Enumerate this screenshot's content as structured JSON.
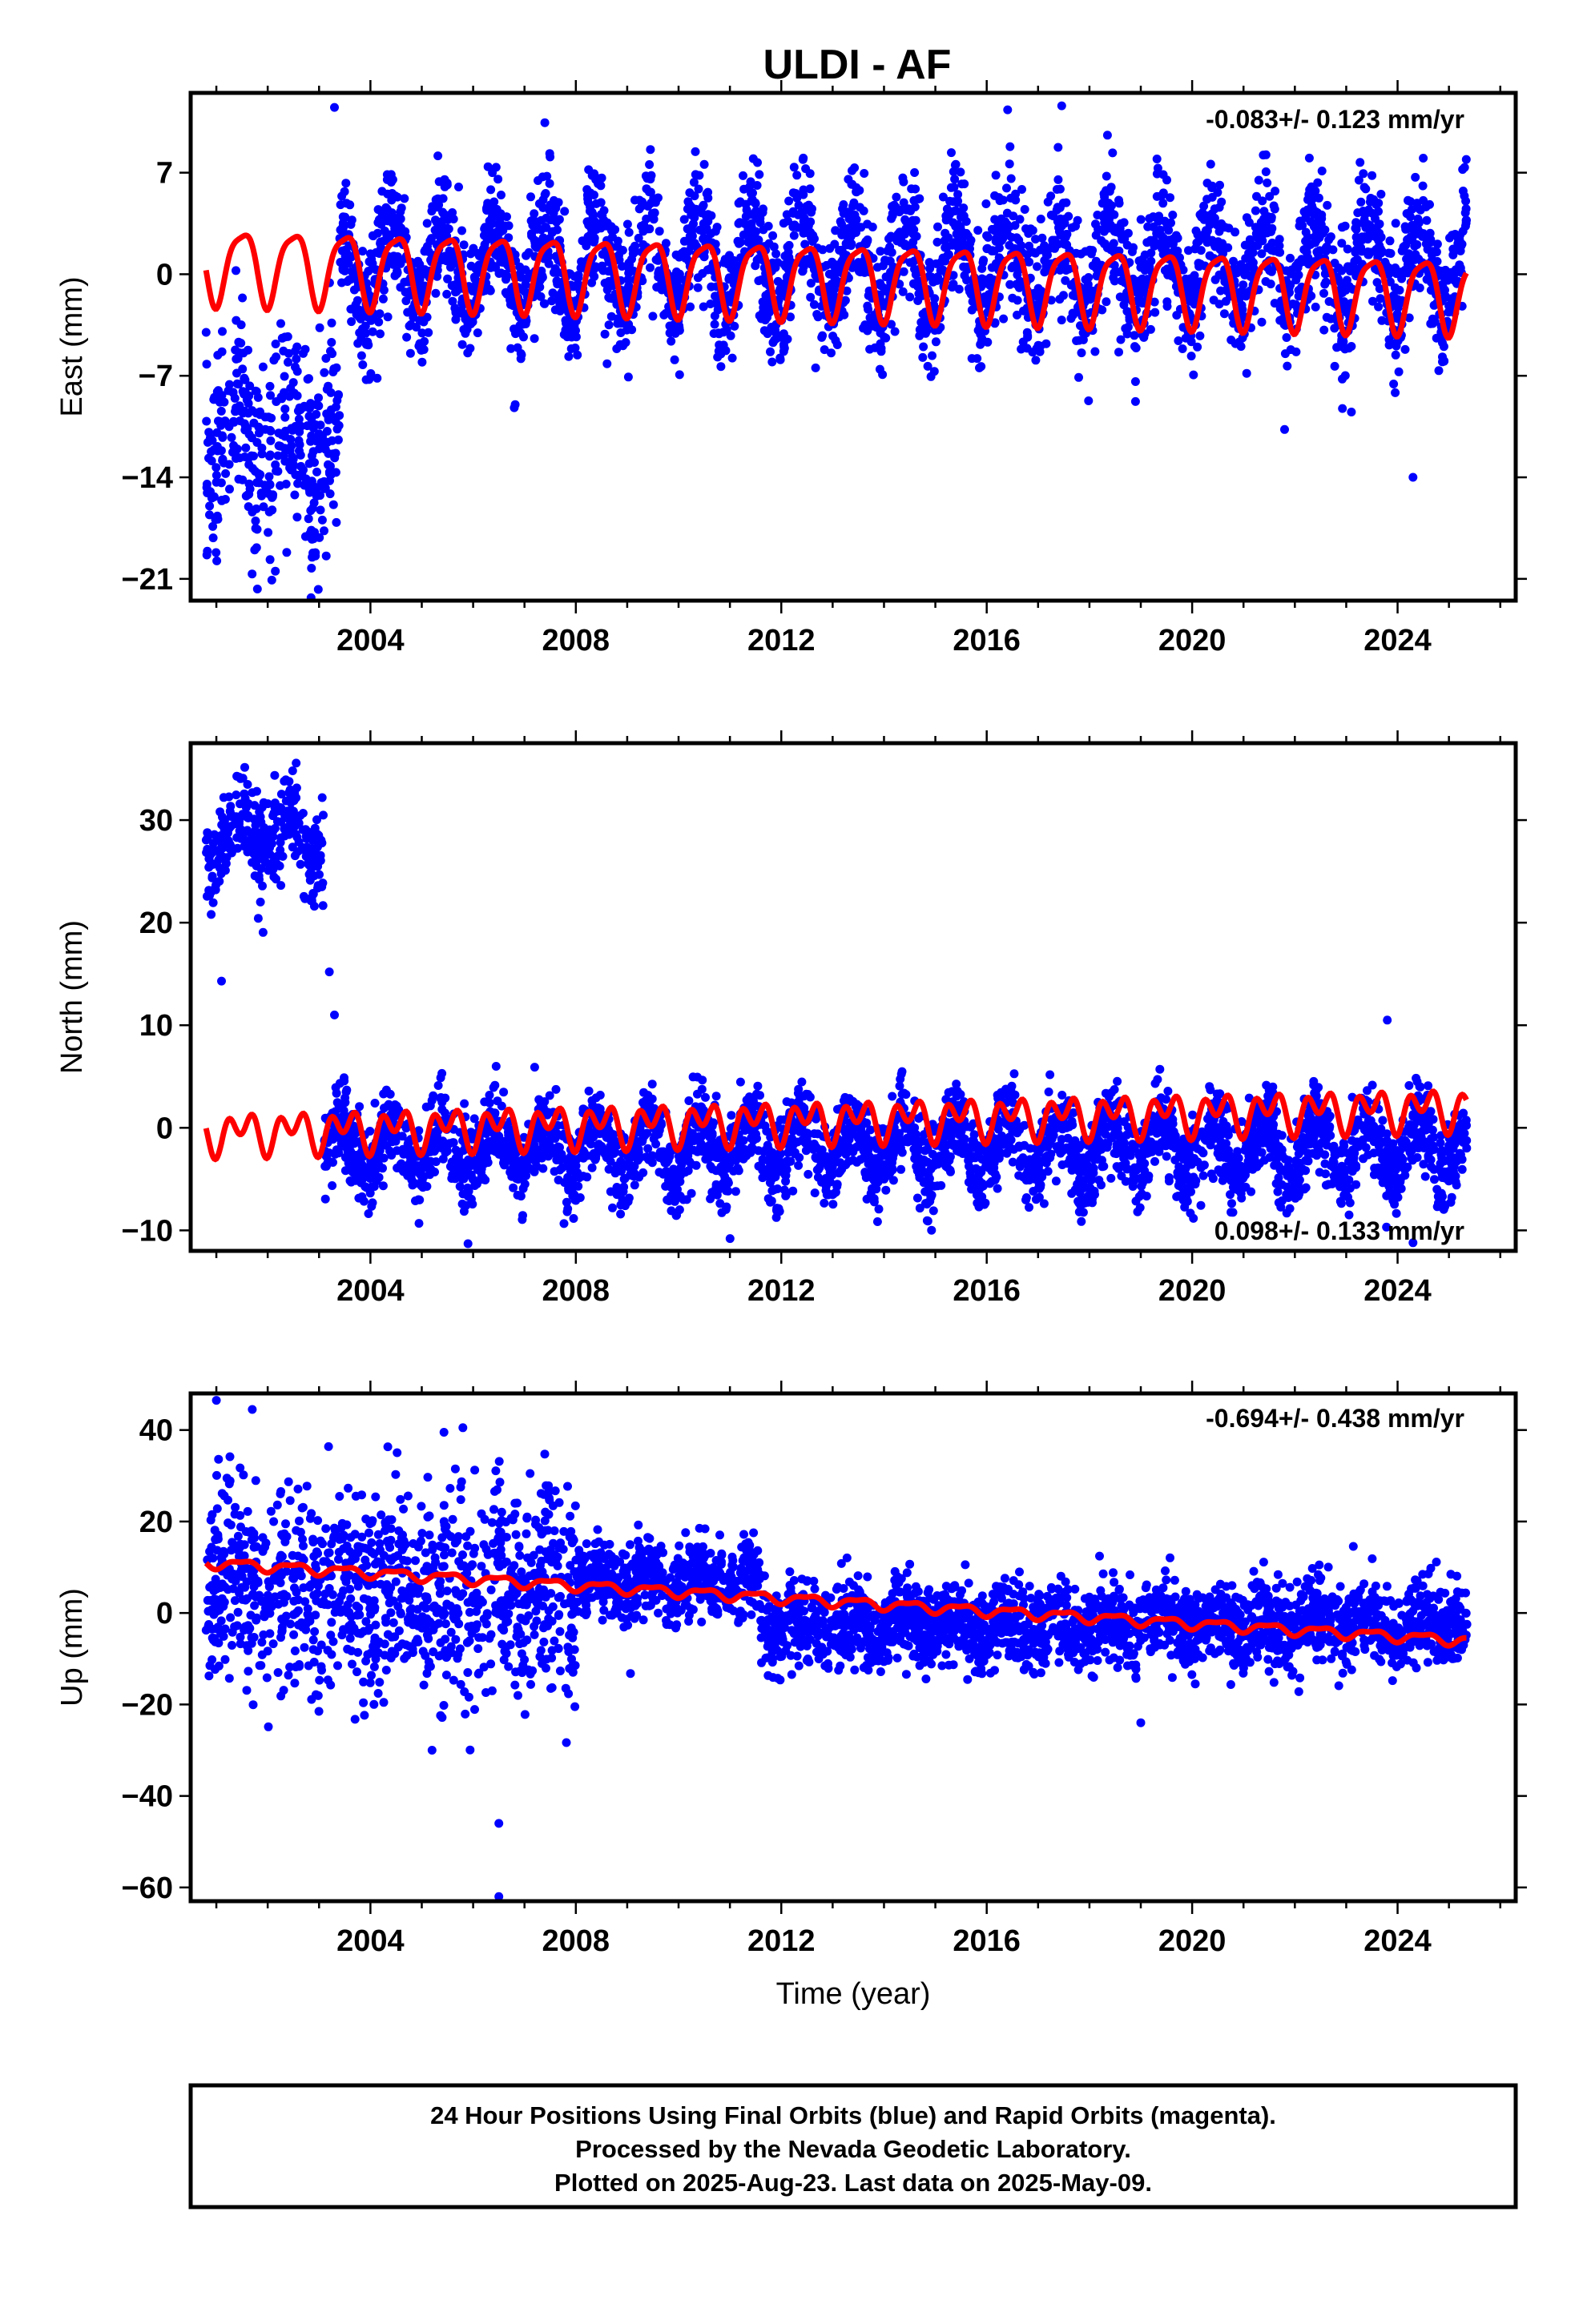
{
  "title": "ULDI - AF",
  "x_axis_label": "Time (year)",
  "x_ticks": [
    "2004",
    "2008",
    "2012",
    "2016",
    "2020",
    "2024"
  ],
  "footer": {
    "line1": "24 Hour Positions Using Final Orbits (blue) and Rapid Orbits (magenta).",
    "line2": "Processed by the Nevada Geodetic Laboratory.",
    "line3": "Plotted on 2025-Aug-23. Last data on 2025-May-09."
  },
  "colors": {
    "data_points": "#0000ff",
    "model_fit": "#ff0000",
    "axes": "#000000"
  },
  "chart_data": [
    {
      "type": "scatter",
      "panel": "east",
      "ylabel": "East (mm)",
      "rate_label": "-0.083+/- 0.123 mm/yr",
      "rate_position": "top-right",
      "xlim": [
        2000.5,
        2026.3
      ],
      "ylim": [
        -22.5,
        12.5
      ],
      "yticks": [
        7,
        0,
        -7,
        -14,
        -21
      ],
      "ytick_labels": [
        "7",
        "0",
        "−7",
        "−14",
        "−21"
      ],
      "series": [
        {
          "marker": "dot",
          "segments": [
            {
              "x": [
                2000.8,
                2003.4
              ],
              "center": -11.5,
              "seasonal_amp": 2.5,
              "noise": 3.5
            },
            {
              "x": [
                2003.4,
                2025.35
              ],
              "center": 0.5,
              "seasonal_amp": 3.0,
              "noise": 2.2
            }
          ],
          "outliers": [
            [
              2024.5,
              8.0
            ],
            [
              2024.3,
              -14.0
            ],
            [
              2021.8,
              -10.7
            ],
            [
              2023.1,
              -9.5
            ],
            [
              2006.8,
              -9.2
            ],
            [
              2003.3,
              11.5
            ],
            [
              2001.8,
              -21.7
            ]
          ]
        },
        {
          "kind": "model_fit",
          "x": [
            2000.8,
            2025.35
          ],
          "offset_start": 0.7,
          "slope": -0.083,
          "annual_amp": 2.5,
          "semiannual_amp": 0.6
        }
      ]
    },
    {
      "type": "scatter",
      "panel": "north",
      "ylabel": "North (mm)",
      "rate_label": "0.098+/- 0.133 mm/yr",
      "rate_position": "bottom-right",
      "xlim": [
        2000.5,
        2026.3
      ],
      "ylim": [
        -12,
        37.5
      ],
      "yticks": [
        30,
        20,
        10,
        0,
        -10
      ],
      "ytick_labels": [
        "30",
        "20",
        "10",
        "0",
        "−10"
      ],
      "series": [
        {
          "marker": "dot",
          "segments": [
            {
              "x": [
                2000.8,
                2003.1
              ],
              "center": 28.5,
              "seasonal_amp": 2.5,
              "noise": 2.5
            },
            {
              "x": [
                2003.1,
                2025.35
              ],
              "center": -2.0,
              "seasonal_amp": 2.5,
              "noise": 2.0
            }
          ],
          "outliers": [
            [
              2001.1,
              14.3
            ],
            [
              2003.2,
              15.2
            ],
            [
              2003.3,
              11.0
            ],
            [
              2023.8,
              10.5
            ],
            [
              2005.9,
              -11.3
            ],
            [
              2024.3,
              -11.2
            ],
            [
              2000.9,
              20.8
            ]
          ]
        },
        {
          "kind": "model_fit",
          "x": [
            2000.8,
            2025.35
          ],
          "offset_start": -0.5,
          "slope": 0.098,
          "annual_amp": 1.2,
          "semiannual_amp": 1.4
        }
      ]
    },
    {
      "type": "scatter",
      "panel": "up",
      "ylabel": "Up (mm)",
      "rate_label": "-0.694+/- 0.438 mm/yr",
      "rate_position": "top-right",
      "xlim": [
        2000.5,
        2026.3
      ],
      "ylim": [
        -63,
        48
      ],
      "yticks": [
        40,
        20,
        0,
        -20,
        -40,
        -60
      ],
      "ytick_labels": [
        "40",
        "20",
        "0",
        "−20",
        "−40",
        "−60"
      ],
      "series": [
        {
          "marker": "dot",
          "segments": [
            {
              "x": [
                2000.8,
                2008.0
              ],
              "center": 5.0,
              "seasonal_amp": 3.0,
              "noise": 11.0
            },
            {
              "x": [
                2008.0,
                2011.6
              ],
              "center": 7.0,
              "seasonal_amp": 2.0,
              "noise": 4.0
            },
            {
              "x": [
                2011.6,
                2025.35
              ],
              "center": -2.5,
              "seasonal_amp": 2.0,
              "noise": 4.5
            }
          ],
          "outliers": [
            [
              2001.0,
              46.5
            ],
            [
              2001.7,
              44.5
            ],
            [
              2005.8,
              40.5
            ],
            [
              2006.5,
              -46.0
            ],
            [
              2006.5,
              -62.0
            ],
            [
              2019.0,
              -24.0
            ],
            [
              2005.2,
              -30.0
            ]
          ]
        },
        {
          "kind": "model_fit",
          "x": [
            2000.8,
            2025.35
          ],
          "offset_start": 11.0,
          "slope": -0.694,
          "annual_amp": 1.0,
          "semiannual_amp": 0.4
        }
      ]
    }
  ]
}
